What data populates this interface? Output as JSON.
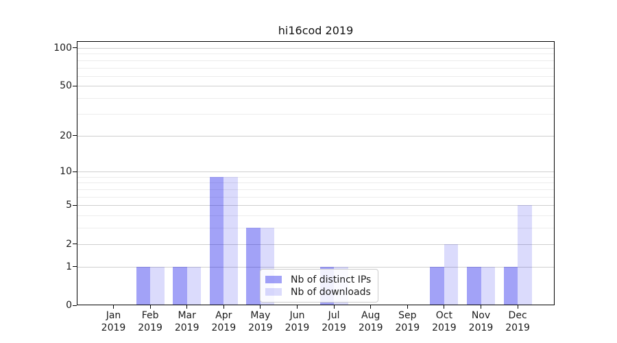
{
  "chart_data": {
    "type": "bar",
    "title": "hi16cod 2019",
    "categories": [
      "Jan",
      "Feb",
      "Mar",
      "Apr",
      "May",
      "Jun",
      "Jul",
      "Aug",
      "Sep",
      "Oct",
      "Nov",
      "Dec"
    ],
    "category_year": "2019",
    "series": [
      {
        "name": "Nb of distinct IPs",
        "color": "rgba(10,10,235,0.38)",
        "values": [
          0,
          1,
          1,
          9,
          3,
          0,
          1,
          0,
          0,
          1,
          1,
          1
        ]
      },
      {
        "name": "Nb of downloads",
        "color": "rgba(10,10,235,0.145)",
        "values": [
          0,
          1,
          1,
          9,
          3,
          0,
          1,
          0,
          0,
          2,
          1,
          5
        ]
      }
    ],
    "yscale": "log1p",
    "ylim": [
      0,
      113
    ],
    "y_major_ticks": [
      0,
      1,
      2,
      5,
      10,
      20,
      50,
      100
    ],
    "y_minor_gridlines": [
      3,
      4,
      6,
      7,
      8,
      9,
      30,
      40,
      60,
      70,
      80,
      90
    ],
    "grid": true,
    "legend_position": "lower-center",
    "xlabel": "",
    "ylabel": ""
  },
  "colors": {
    "major_grid": "#cfcfcf",
    "minor_grid": "#ececec",
    "spine": "#000000",
    "text": "#1a1a1a",
    "legend_border": "#cccccc"
  }
}
